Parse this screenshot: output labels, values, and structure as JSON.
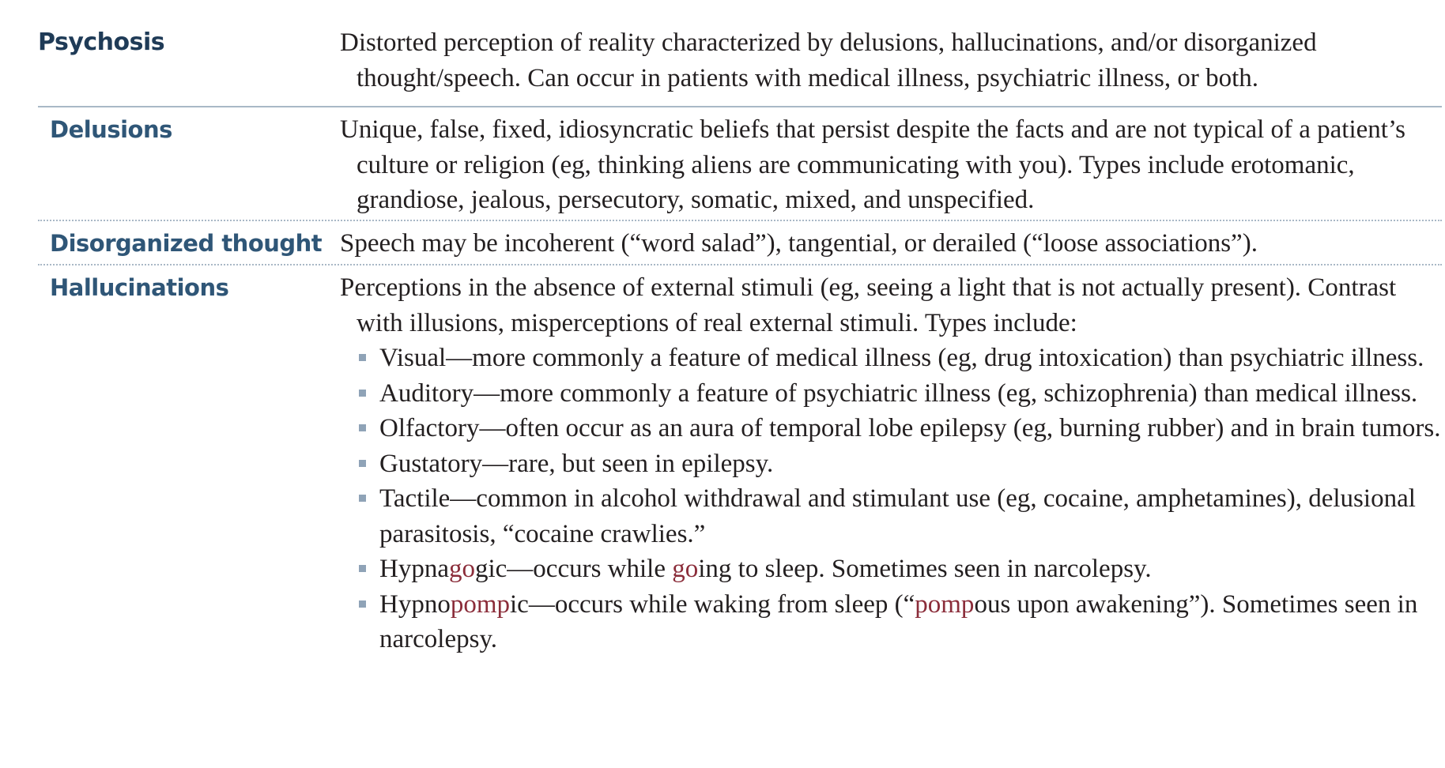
{
  "rows": [
    {
      "term": "Psychosis",
      "definition": "Distorted perception of reality characterized by delusions, hallucinations, and/or disorganized thought/speech. Can occur in patients with medical illness, psychiatric illness, or both."
    },
    {
      "term": "Delusions",
      "definition": "Unique, false, fixed, idiosyncratic beliefs that persist despite the facts and are not typical of a patient’s culture or religion (eg, thinking aliens are communicating with you). Types include erotomanic, grandiose, jealous, persecutory, somatic, mixed, and unspecified."
    },
    {
      "term": "Disorganized thought",
      "definition": "Speech may be incoherent (“word salad”), tangential, or derailed (“loose associations”)."
    },
    {
      "term": "Hallucinations",
      "definition": "Perceptions in the absence of external stimuli (eg, seeing a light that is not actually present). Contrast with illusions, misperceptions of real external stimuli. Types include:",
      "bullets": [
        "Visual—more commonly a feature of medical illness (eg, drug intoxication) than psychiatric illness.",
        "Auditory—more commonly a feature of psychiatric illness (eg, schizophrenia) than medical illness.",
        "Olfactory—often occur as an aura of temporal lobe epilepsy (eg, burning rubber) and in brain tumors.",
        "Gustatory—rare, but seen in epilepsy.",
        "Tactile—common in alcohol withdrawal and stimulant use (eg, cocaine, amphetamines), delusional parasitosis, “cocaine crawlies.”"
      ],
      "hypnagogic": {
        "a": "Hypna",
        "b": "go",
        "c": "gic—occurs while ",
        "d": "go",
        "e": "ing to sleep. Sometimes seen in narcolepsy."
      },
      "hypnopompic": {
        "a": "Hypno",
        "b": "pomp",
        "c": "ic—occurs while waking from sleep (“",
        "d": "pomp",
        "e": "ous upon awakening”). Sometimes seen in narcolepsy."
      }
    }
  ],
  "colors": {
    "heading": "#1f3b57",
    "subheading": "#2f5677",
    "highlight": "#8b2d3a",
    "rule": "#a9b8c6",
    "bullet": "#8fa3b7"
  }
}
